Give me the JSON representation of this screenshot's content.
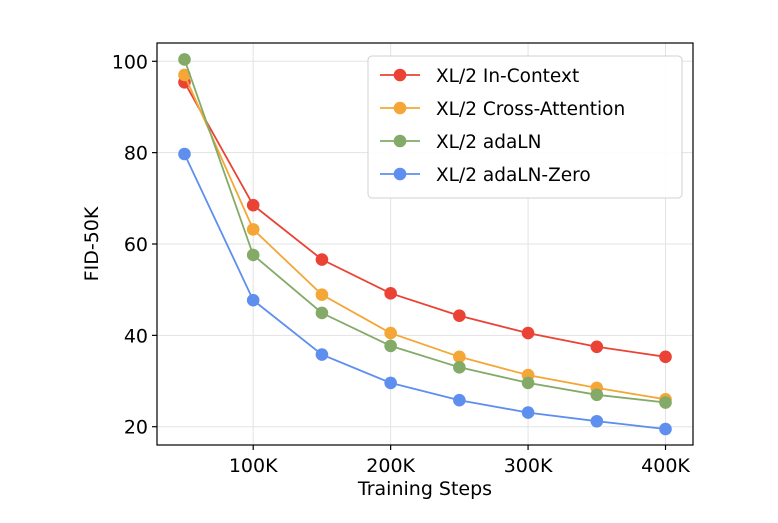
{
  "chart_data": {
    "type": "line",
    "xlabel": "Training Steps",
    "ylabel": "FID-50K",
    "xlim": [
      30000,
      420000
    ],
    "ylim": [
      16,
      104
    ],
    "x_ticks": [
      100000,
      200000,
      300000,
      400000
    ],
    "x_tick_labels": [
      "100K",
      "200K",
      "300K",
      "400K"
    ],
    "y_ticks": [
      20,
      40,
      60,
      80,
      100
    ],
    "y_tick_labels": [
      "20",
      "40",
      "60",
      "80",
      "100"
    ],
    "grid": true,
    "legend_position": "top-right",
    "x": [
      50000,
      100000,
      150000,
      200000,
      250000,
      300000,
      350000,
      400000
    ],
    "series": [
      {
        "name": "XL/2 In-Context",
        "color": "#EA4335",
        "values": [
          95.4,
          68.5,
          56.6,
          49.2,
          44.3,
          40.5,
          37.5,
          35.3
        ]
      },
      {
        "name": "XL/2 Cross-Attention",
        "color": "#F4A736",
        "values": [
          97.0,
          63.2,
          48.9,
          40.5,
          35.3,
          31.3,
          28.5,
          26.0
        ]
      },
      {
        "name": "XL/2 adaLN",
        "color": "#83AB67",
        "values": [
          100.4,
          57.6,
          44.9,
          37.7,
          33.0,
          29.6,
          27.0,
          25.3
        ]
      },
      {
        "name": "XL/2 adaLN-Zero",
        "color": "#5E8FEF",
        "values": [
          79.7,
          47.7,
          35.8,
          29.6,
          25.8,
          23.1,
          21.2,
          19.5
        ]
      }
    ]
  }
}
